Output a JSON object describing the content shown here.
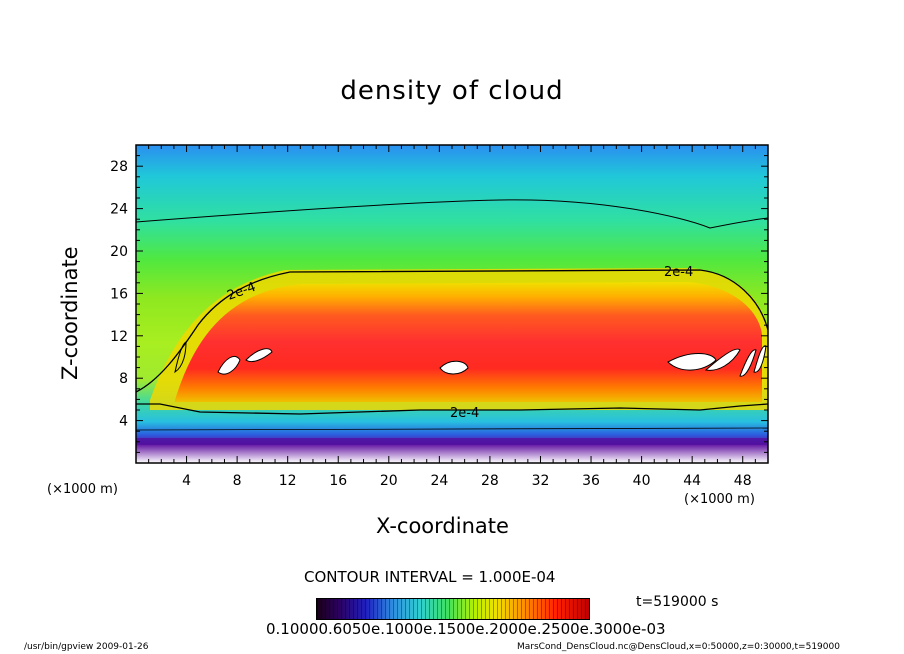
{
  "chart_data": {
    "type": "heatmap",
    "title": "density of cloud",
    "xlabel": "X-coordinate",
    "ylabel": "Z-coordinate",
    "x_unit_left": "(×1000 m)",
    "x_unit_right": "(×1000 m)",
    "xlim": [
      0,
      50
    ],
    "ylim": [
      0,
      30
    ],
    "x_ticks": [
      4,
      8,
      12,
      16,
      20,
      24,
      28,
      32,
      36,
      40,
      44,
      48
    ],
    "y_ticks": [
      4,
      8,
      12,
      16,
      20,
      24,
      28
    ],
    "contour_interval": "CONTOUR INTERVAL = 1.000E-04",
    "contour_labels": [
      "2e-4",
      "2e-4",
      "2e-4"
    ],
    "colorbar_labels": "0.10000.6050e.1000e.1500e.2000e.2500e.3000e-03",
    "time_label": "t=519000 s",
    "colormap": [
      "#1a0018",
      "#2020c0",
      "#2fd0d0",
      "#3fe060",
      "#f0e000",
      "#ff9000",
      "#ff2000",
      "#c00000"
    ]
  },
  "footer": {
    "left": "/usr/bin/gpview  2009-01-26",
    "right": "MarsCond_DensCloud.nc@DensCloud,x=0:50000,z=0:30000,t=519000"
  }
}
